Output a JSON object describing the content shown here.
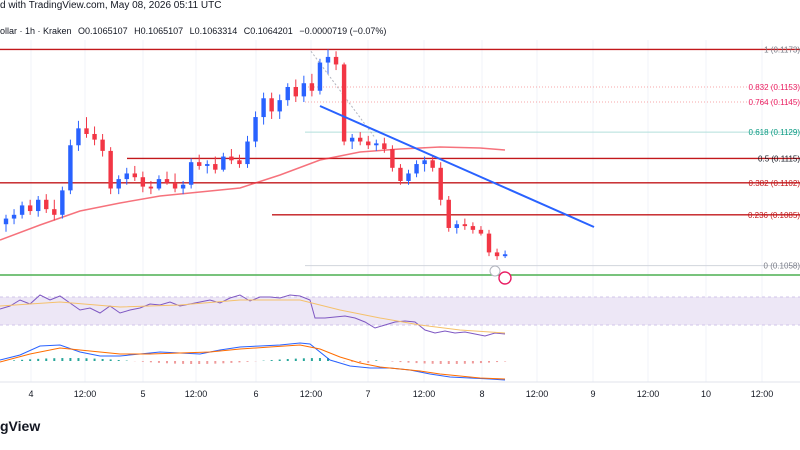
{
  "header": {
    "published": "d with TradingView.com, May 08, 2026 05:11 UTC"
  },
  "symbol_bar": {
    "name": "ollar · 1h · Kraken",
    "open": "O0.1065107",
    "high": "H0.1065107",
    "low": "L0.1063314",
    "close": "C0.1064201",
    "change": "−0.0000719 (−0.07%)"
  },
  "branding": {
    "logo_text": "gView"
  },
  "colors": {
    "up": "#089981",
    "down": "#f23645",
    "candle_up": "#2962ff",
    "candle_down": "#f23645",
    "ma": "#f23645",
    "trendline": "#2962ff",
    "fib_line": "#c2181b",
    "support": "#4caf50",
    "rsi": "#7e57c2",
    "rsi_band": "#ede7f6",
    "macd": "#2962ff",
    "signal": "#ff6d00",
    "grid": "#f0f3fa",
    "axis_text": "#131722"
  },
  "chart_data": {
    "type": "candlestick",
    "title": "",
    "timeframe": "1h",
    "exchange": "Kraken",
    "x_tick_labels": [
      "4",
      "12:00",
      "5",
      "12:00",
      "6",
      "12:00",
      "7",
      "12:00",
      "8",
      "12:00",
      "9",
      "12:00",
      "10",
      "12:00"
    ],
    "y_range": [
      0.1045,
      0.1178
    ],
    "fibonacci": [
      {
        "level": "1",
        "price": "0.1173"
      },
      {
        "level": "0.832",
        "price": "0.1153"
      },
      {
        "level": "0.764",
        "price": "0.1145"
      },
      {
        "level": "0.618",
        "price": "0.1129"
      },
      {
        "level": "0.5",
        "price": "0.1115"
      },
      {
        "level": "0.382",
        "price": "0.1102"
      },
      {
        "level": "0.236",
        "price": "0.1085"
      },
      {
        "level": "0",
        "price": "0.1058"
      }
    ],
    "candles": [
      {
        "o": 0.108,
        "h": 0.1085,
        "l": 0.1076,
        "c": 0.1083
      },
      {
        "o": 0.1083,
        "h": 0.1088,
        "l": 0.108,
        "c": 0.1085
      },
      {
        "o": 0.1085,
        "h": 0.1092,
        "l": 0.1083,
        "c": 0.109
      },
      {
        "o": 0.109,
        "h": 0.1093,
        "l": 0.1085,
        "c": 0.1087
      },
      {
        "o": 0.1087,
        "h": 0.1095,
        "l": 0.1084,
        "c": 0.1093
      },
      {
        "o": 0.1093,
        "h": 0.1096,
        "l": 0.1086,
        "c": 0.1088
      },
      {
        "o": 0.1088,
        "h": 0.1093,
        "l": 0.1082,
        "c": 0.1085
      },
      {
        "o": 0.1085,
        "h": 0.11,
        "l": 0.1083,
        "c": 0.1098
      },
      {
        "o": 0.1098,
        "h": 0.1125,
        "l": 0.1096,
        "c": 0.1122
      },
      {
        "o": 0.1122,
        "h": 0.1135,
        "l": 0.1119,
        "c": 0.1131
      },
      {
        "o": 0.1131,
        "h": 0.1137,
        "l": 0.1126,
        "c": 0.1128
      },
      {
        "o": 0.1128,
        "h": 0.1132,
        "l": 0.1122,
        "c": 0.1125
      },
      {
        "o": 0.1125,
        "h": 0.1128,
        "l": 0.1116,
        "c": 0.1119
      },
      {
        "o": 0.1119,
        "h": 0.1121,
        "l": 0.1096,
        "c": 0.1099
      },
      {
        "o": 0.1099,
        "h": 0.1106,
        "l": 0.1096,
        "c": 0.1104
      },
      {
        "o": 0.1104,
        "h": 0.111,
        "l": 0.1101,
        "c": 0.1107
      },
      {
        "o": 0.1107,
        "h": 0.1111,
        "l": 0.1103,
        "c": 0.1105
      },
      {
        "o": 0.1105,
        "h": 0.1108,
        "l": 0.1097,
        "c": 0.11
      },
      {
        "o": 0.11,
        "h": 0.1103,
        "l": 0.1096,
        "c": 0.1099
      },
      {
        "o": 0.1099,
        "h": 0.1106,
        "l": 0.1098,
        "c": 0.1104
      },
      {
        "o": 0.1104,
        "h": 0.1108,
        "l": 0.1101,
        "c": 0.1102
      },
      {
        "o": 0.1102,
        "h": 0.1107,
        "l": 0.1097,
        "c": 0.1099
      },
      {
        "o": 0.1099,
        "h": 0.1103,
        "l": 0.1096,
        "c": 0.1101
      },
      {
        "o": 0.1101,
        "h": 0.1115,
        "l": 0.1099,
        "c": 0.1113
      },
      {
        "o": 0.1113,
        "h": 0.1117,
        "l": 0.1109,
        "c": 0.1111
      },
      {
        "o": 0.1111,
        "h": 0.1114,
        "l": 0.1107,
        "c": 0.1112
      },
      {
        "o": 0.1112,
        "h": 0.1116,
        "l": 0.1107,
        "c": 0.1109
      },
      {
        "o": 0.1109,
        "h": 0.1118,
        "l": 0.1108,
        "c": 0.1116
      },
      {
        "o": 0.1116,
        "h": 0.112,
        "l": 0.1112,
        "c": 0.1114
      },
      {
        "o": 0.1114,
        "h": 0.1117,
        "l": 0.111,
        "c": 0.1112
      },
      {
        "o": 0.1112,
        "h": 0.1127,
        "l": 0.111,
        "c": 0.1124
      },
      {
        "o": 0.1124,
        "h": 0.114,
        "l": 0.1121,
        "c": 0.1137
      },
      {
        "o": 0.1137,
        "h": 0.115,
        "l": 0.1133,
        "c": 0.1147
      },
      {
        "o": 0.1147,
        "h": 0.115,
        "l": 0.1136,
        "c": 0.114
      },
      {
        "o": 0.114,
        "h": 0.1149,
        "l": 0.1136,
        "c": 0.1146
      },
      {
        "o": 0.1146,
        "h": 0.1155,
        "l": 0.1143,
        "c": 0.1153
      },
      {
        "o": 0.1153,
        "h": 0.1157,
        "l": 0.1145,
        "c": 0.1148
      },
      {
        "o": 0.1148,
        "h": 0.1159,
        "l": 0.1145,
        "c": 0.1155
      },
      {
        "o": 0.1155,
        "h": 0.116,
        "l": 0.1148,
        "c": 0.1151
      },
      {
        "o": 0.1151,
        "h": 0.1168,
        "l": 0.1149,
        "c": 0.1166
      },
      {
        "o": 0.1166,
        "h": 0.1173,
        "l": 0.116,
        "c": 0.1169
      },
      {
        "o": 0.1169,
        "h": 0.1172,
        "l": 0.1162,
        "c": 0.1165
      },
      {
        "o": 0.1165,
        "h": 0.1166,
        "l": 0.1122,
        "c": 0.1124
      },
      {
        "o": 0.1124,
        "h": 0.1128,
        "l": 0.112,
        "c": 0.1126
      },
      {
        "o": 0.1126,
        "h": 0.1129,
        "l": 0.1122,
        "c": 0.1124
      },
      {
        "o": 0.1124,
        "h": 0.1127,
        "l": 0.112,
        "c": 0.1122
      },
      {
        "o": 0.1122,
        "h": 0.1125,
        "l": 0.1119,
        "c": 0.1123
      },
      {
        "o": 0.1123,
        "h": 0.1126,
        "l": 0.1118,
        "c": 0.112
      },
      {
        "o": 0.112,
        "h": 0.1122,
        "l": 0.1108,
        "c": 0.111
      },
      {
        "o": 0.111,
        "h": 0.1112,
        "l": 0.1101,
        "c": 0.1103
      },
      {
        "o": 0.1103,
        "h": 0.1109,
        "l": 0.1101,
        "c": 0.1107
      },
      {
        "o": 0.1107,
        "h": 0.1114,
        "l": 0.1105,
        "c": 0.1112
      },
      {
        "o": 0.1112,
        "h": 0.1116,
        "l": 0.1108,
        "c": 0.1114
      },
      {
        "o": 0.1114,
        "h": 0.1116,
        "l": 0.1108,
        "c": 0.111
      },
      {
        "o": 0.111,
        "h": 0.1113,
        "l": 0.109,
        "c": 0.1093
      },
      {
        "o": 0.1093,
        "h": 0.1095,
        "l": 0.1076,
        "c": 0.1078
      },
      {
        "o": 0.1078,
        "h": 0.1082,
        "l": 0.1075,
        "c": 0.108
      },
      {
        "o": 0.108,
        "h": 0.1083,
        "l": 0.1077,
        "c": 0.1079
      },
      {
        "o": 0.1079,
        "h": 0.1081,
        "l": 0.1075,
        "c": 0.1077
      },
      {
        "o": 0.1077,
        "h": 0.1079,
        "l": 0.1074,
        "c": 0.1075
      },
      {
        "o": 0.1075,
        "h": 0.1077,
        "l": 0.1063,
        "c": 0.1065
      },
      {
        "o": 0.1065,
        "h": 0.1067,
        "l": 0.1061,
        "c": 0.1063
      },
      {
        "o": 0.1063,
        "h": 0.1066,
        "l": 0.1062,
        "c": 0.1064
      }
    ]
  }
}
